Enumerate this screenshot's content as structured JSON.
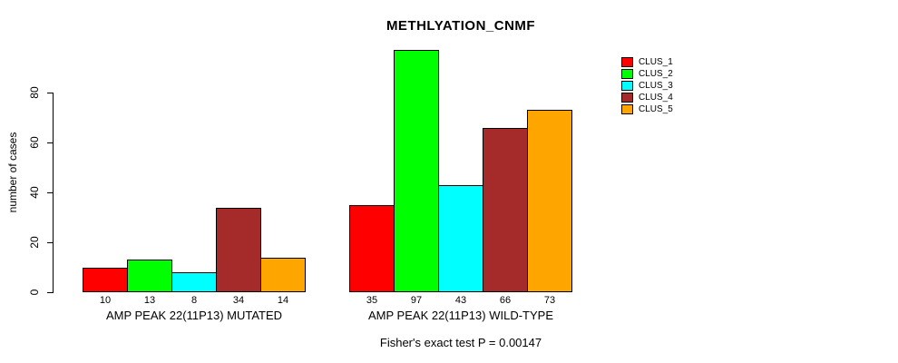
{
  "title": "METHLYATION_CNMF",
  "footer": "Fisher's exact test P = 0.00147",
  "chart_data": {
    "type": "bar",
    "title": "METHLYATION_CNMF",
    "xlabel": "",
    "ylabel": "number of cases",
    "ylim": [
      0,
      100
    ],
    "yticks": [
      0,
      20,
      40,
      60,
      80
    ],
    "grid": false,
    "legend_position": "right",
    "bar_value_labels": true,
    "categories": [
      "AMP PEAK 22(11P13) MUTATED",
      "AMP PEAK 22(11P13) WILD-TYPE"
    ],
    "series": [
      {
        "name": "CLUS_1",
        "color": "#FF0000",
        "values": [
          10,
          35
        ]
      },
      {
        "name": "CLUS_2",
        "color": "#00FF00",
        "values": [
          13,
          97
        ]
      },
      {
        "name": "CLUS_3",
        "color": "#00FFFF",
        "values": [
          8,
          43
        ]
      },
      {
        "name": "CLUS_4",
        "color": "#A52A2A",
        "values": [
          34,
          66
        ]
      },
      {
        "name": "CLUS_5",
        "color": "#FFA500",
        "values": [
          14,
          73
        ]
      }
    ],
    "annotation": "Fisher's exact test P = 0.00147"
  }
}
